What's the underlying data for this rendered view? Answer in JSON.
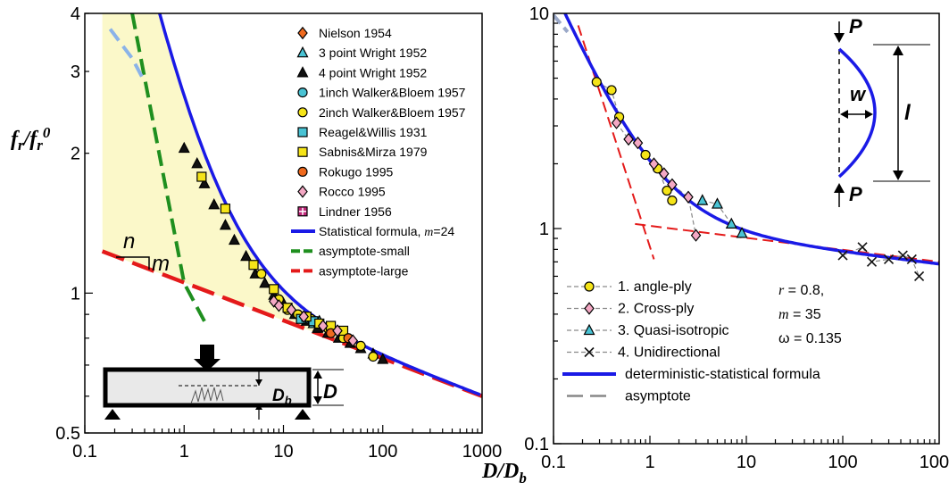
{
  "chart_data": [
    {
      "type": "scatter",
      "panel": "left",
      "ylabel": "f_r/f_r^0",
      "xscale": "log",
      "yscale": "log",
      "xlim": [
        0.1,
        1000
      ],
      "ylim": [
        0.5,
        4
      ],
      "xticks": [
        0.1,
        1,
        10,
        100,
        1000
      ],
      "xtick_labels": [
        "0.1",
        "1",
        "10",
        "100",
        "1000"
      ],
      "yticks": [
        0.5,
        1,
        2,
        3,
        4
      ],
      "ytick_labels": [
        "0.5",
        "1",
        "2",
        "3",
        "4"
      ],
      "grid": false,
      "legend_position": "top-right",
      "slope_annotation": {
        "n": "n",
        "m": "m"
      },
      "inset_label": {
        "D": "D",
        "Db": "D",
        "Db_sub": "b"
      },
      "series": [
        {
          "name": "Nielson 1954",
          "marker": "diamond",
          "color": "#f06a1e",
          "points": []
        },
        {
          "name": "3 point Wright 1952",
          "marker": "triangle",
          "color": "#49c3d4",
          "points": [
            [
              20,
              0.86
            ],
            [
              23,
              0.87
            ]
          ]
        },
        {
          "name": "4 point Wright 1952",
          "marker": "triangle",
          "color": "#111111",
          "points": [
            [
              1.0,
              2.05
            ],
            [
              1.35,
              1.9
            ],
            [
              1.6,
              1.72
            ],
            [
              2.0,
              1.55
            ],
            [
              2.6,
              1.4
            ],
            [
              3.2,
              1.3
            ],
            [
              4.2,
              1.2
            ],
            [
              5.2,
              1.1
            ],
            [
              6.5,
              1.05
            ],
            [
              8,
              0.99
            ],
            [
              10,
              0.95
            ],
            [
              13,
              0.9
            ],
            [
              17,
              0.87
            ],
            [
              22,
              0.84
            ],
            [
              28,
              0.82
            ],
            [
              36,
              0.8
            ],
            [
              47,
              0.78
            ],
            [
              60,
              0.76
            ],
            [
              80,
              0.74
            ],
            [
              100,
              0.72
            ]
          ]
        },
        {
          "name": "1inch Walker&Bloem 1957",
          "marker": "circle",
          "color": "#49c3d4",
          "points": [
            [
              18,
              0.88
            ],
            [
              22,
              0.86
            ]
          ]
        },
        {
          "name": "2inch Walker&Bloem 1957",
          "marker": "circle",
          "color": "#f5e418",
          "points": [
            [
              6,
              1.1
            ],
            [
              9,
              0.97
            ],
            [
              11,
              0.92
            ],
            [
              14,
              0.9
            ],
            [
              19,
              0.88
            ],
            [
              28,
              0.84
            ],
            [
              40,
              0.8
            ],
            [
              60,
              0.77
            ],
            [
              80,
              0.73
            ]
          ]
        },
        {
          "name": "Reagel&Willis 1931",
          "marker": "square",
          "color": "#49c3d4",
          "points": [
            [
              15,
              0.88
            ],
            [
              17,
              0.89
            ],
            [
              20,
              0.87
            ]
          ]
        },
        {
          "name": "Sabnis&Mirza 1979",
          "marker": "square",
          "color": "#f5e418",
          "points": [
            [
              1.5,
              1.78
            ],
            [
              2.6,
              1.52
            ],
            [
              5,
              1.15
            ],
            [
              8,
              1.02
            ],
            [
              11,
              0.93
            ],
            [
              17,
              0.89
            ],
            [
              23,
              0.86
            ],
            [
              30,
              0.85
            ],
            [
              40,
              0.83
            ]
          ]
        },
        {
          "name": "Rokugo 1995",
          "marker": "circle",
          "color": "#f06a1e",
          "points": [
            [
              30,
              0.82
            ],
            [
              45,
              0.8
            ]
          ]
        },
        {
          "name": "Rocco 1995",
          "marker": "diamond",
          "color": "#f4a8c4",
          "points": [
            [
              8,
              0.96
            ],
            [
              9,
              0.94
            ],
            [
              12,
              0.92
            ],
            [
              16,
              0.89
            ],
            [
              25,
              0.85
            ],
            [
              35,
              0.83
            ],
            [
              50,
              0.79
            ]
          ]
        },
        {
          "name": "Lindner 1956",
          "marker": "square-plus",
          "color": "#c0287a",
          "points": []
        },
        {
          "name": "Statistical formula, m=24",
          "name_plain": "Statistical formula, ",
          "name_var": "m",
          "name_rest": "=24",
          "type": "line",
          "color": "#1a1ae6"
        },
        {
          "name": "asymptote-small",
          "type": "line",
          "color": "#1f8f1f",
          "points": [
            [
              0.3,
              4.0
            ],
            [
              1.0,
              1.05
            ],
            [
              1.6,
              0.87
            ]
          ]
        },
        {
          "name": "asymptote-large",
          "type": "line",
          "color": "#e41a1a",
          "points": [
            [
              0.15,
              1.23
            ],
            [
              1000,
              0.6
            ]
          ]
        }
      ]
    },
    {
      "type": "scatter",
      "panel": "right",
      "xlabel": "D/D_b",
      "xscale": "log",
      "yscale": "log",
      "xlim": [
        0.1,
        1000
      ],
      "ylim": [
        0.1,
        10
      ],
      "xticks": [
        0.1,
        1,
        10,
        100,
        1000
      ],
      "xtick_labels": [
        "0.1",
        "1",
        "10",
        "100",
        "1000"
      ],
      "yticks": [
        0.1,
        1,
        10
      ],
      "ytick_labels": [
        "0.1",
        "1",
        "10"
      ],
      "grid": false,
      "legend_position": "bottom-left",
      "params": {
        "r": "0.8",
        "m": "35",
        "omega": "0.135"
      },
      "inset_labels": {
        "P_top": "P",
        "P_bottom": "P",
        "w": "w",
        "l": "l"
      },
      "series": [
        {
          "name": "1. angle-ply",
          "marker": "circle",
          "color": "#f5e418",
          "points": [
            [
              0.28,
              4.8
            ],
            [
              0.4,
              4.4
            ],
            [
              0.48,
              3.3
            ],
            [
              0.9,
              2.2
            ],
            [
              1.2,
              1.9
            ],
            [
              1.5,
              1.5
            ],
            [
              1.7,
              1.35
            ]
          ]
        },
        {
          "name": "2. Cross-ply",
          "marker": "diamond",
          "color": "#f4a8c4",
          "points": [
            [
              0.45,
              3.1
            ],
            [
              0.6,
              2.6
            ],
            [
              0.75,
              2.5
            ],
            [
              1.1,
              2.0
            ],
            [
              1.4,
              1.8
            ],
            [
              1.7,
              1.6
            ],
            [
              2.5,
              1.4
            ],
            [
              3.0,
              0.93
            ]
          ]
        },
        {
          "name": "3. Quasi-isotropic",
          "marker": "triangle",
          "color": "#49c3d4",
          "points": [
            [
              3.5,
              1.35
            ],
            [
              5,
              1.3
            ],
            [
              7,
              1.05
            ],
            [
              9,
              0.95
            ]
          ]
        },
        {
          "name": "4. Unidirectional",
          "marker": "x",
          "color": "#111111",
          "points": [
            [
              100,
              0.75
            ],
            [
              160,
              0.82
            ],
            [
              200,
              0.7
            ],
            [
              300,
              0.72
            ],
            [
              420,
              0.75
            ],
            [
              520,
              0.72
            ],
            [
              620,
              0.6
            ]
          ]
        },
        {
          "name": "deterministic-statistical formula",
          "type": "line",
          "color": "#1a1ae6"
        },
        {
          "name": "asymptote",
          "type": "line",
          "color": "#888888"
        }
      ]
    }
  ]
}
